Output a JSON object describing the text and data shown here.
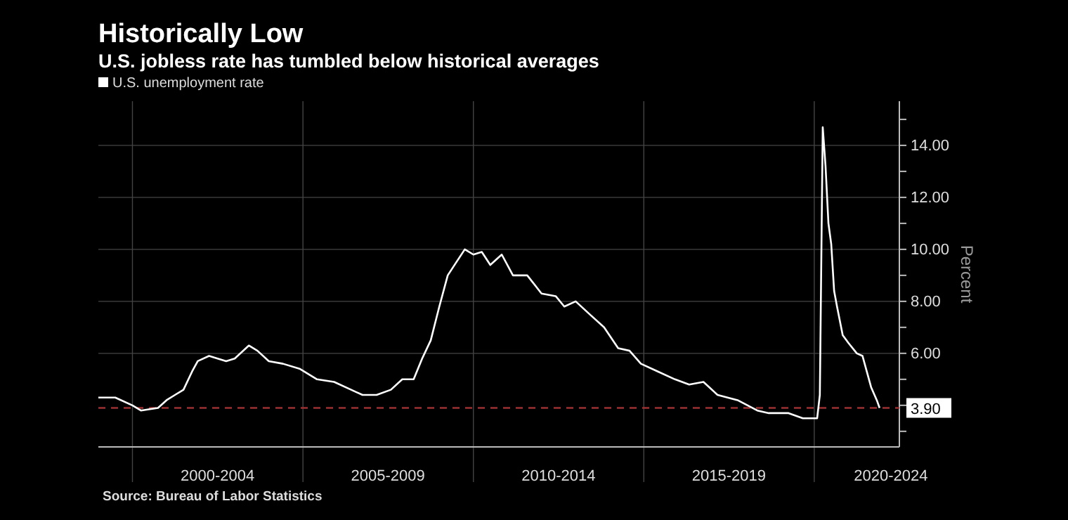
{
  "chart_data": {
    "type": "line",
    "title": "Historically Low",
    "subtitle": "U.S. jobless rate has tumbled below historical averages",
    "ylabel": "Percent",
    "annotations": [
      "Source: Bureau of Labor Statistics"
    ],
    "x": [
      "1999-01",
      "1999-07",
      "2000-01",
      "2000-04",
      "2000-10",
      "2001-01",
      "2001-04",
      "2001-07",
      "2001-10",
      "2001-12",
      "2002-04",
      "2002-07",
      "2002-10",
      "2003-01",
      "2003-06",
      "2003-09",
      "2004-01",
      "2004-06",
      "2004-12",
      "2005-06",
      "2005-12",
      "2006-06",
      "2006-10",
      "2007-03",
      "2007-08",
      "2007-12",
      "2008-04",
      "2008-07",
      "2008-10",
      "2009-01",
      "2009-04",
      "2009-07",
      "2009-10",
      "2010-01",
      "2010-04",
      "2010-07",
      "2010-11",
      "2011-03",
      "2011-08",
      "2012-01",
      "2012-06",
      "2012-09",
      "2013-01",
      "2013-06",
      "2013-11",
      "2014-04",
      "2014-08",
      "2014-12",
      "2015-06",
      "2015-12",
      "2016-05",
      "2016-10",
      "2017-03",
      "2017-10",
      "2018-05",
      "2018-09",
      "2019-04",
      "2019-09",
      "2020-02",
      "2020-03",
      "2020-04",
      "2020-05",
      "2020-06",
      "2020-07",
      "2020-08",
      "2020-09",
      "2020-11",
      "2021-01",
      "2021-04",
      "2021-06",
      "2021-09",
      "2021-11",
      "2021-12"
    ],
    "series": [
      {
        "name": "U.S. unemployment rate",
        "color": "#ffffff",
        "values": [
          4.3,
          4.3,
          4.0,
          3.8,
          3.9,
          4.2,
          4.4,
          4.6,
          5.3,
          5.7,
          5.9,
          5.8,
          5.7,
          5.8,
          6.3,
          6.1,
          5.7,
          5.6,
          5.4,
          5.0,
          4.9,
          4.6,
          4.4,
          4.4,
          4.6,
          5.0,
          5.0,
          5.8,
          6.5,
          7.8,
          9.0,
          9.5,
          10.0,
          9.8,
          9.9,
          9.4,
          9.8,
          9.0,
          9.0,
          8.3,
          8.2,
          7.8,
          8.0,
          7.5,
          7.0,
          6.2,
          6.1,
          5.6,
          5.3,
          5.0,
          4.8,
          4.9,
          4.4,
          4.2,
          3.8,
          3.7,
          3.7,
          3.5,
          3.5,
          4.4,
          14.7,
          13.2,
          11.0,
          10.2,
          8.4,
          7.8,
          6.7,
          6.4,
          6.0,
          5.9,
          4.7,
          4.2,
          3.9
        ]
      }
    ],
    "xlim": [
      "1999-01",
      "2022-07"
    ],
    "xticks": [
      {
        "value": "2000-01",
        "label": null
      },
      {
        "value": "2002-07",
        "label": "2000-2004"
      },
      {
        "value": "2005-01",
        "label": null
      },
      {
        "value": "2007-07",
        "label": "2005-2009"
      },
      {
        "value": "2010-01",
        "label": null
      },
      {
        "value": "2012-07",
        "label": "2010-2014"
      },
      {
        "value": "2015-01",
        "label": null
      },
      {
        "value": "2017-07",
        "label": "2015-2019"
      },
      {
        "value": "2020-01",
        "label": null
      },
      {
        "value": "2022-04",
        "label": "2020-2024"
      }
    ],
    "ylim": [
      2.4,
      15.7
    ],
    "yticks": [
      {
        "value": 3,
        "label": null
      },
      {
        "value": 4,
        "label": null
      },
      {
        "value": 5,
        "label": null
      },
      {
        "value": 6,
        "label": "6.00"
      },
      {
        "value": 7,
        "label": null
      },
      {
        "value": 8,
        "label": "8.00"
      },
      {
        "value": 9,
        "label": null
      },
      {
        "value": 10,
        "label": "10.00"
      },
      {
        "value": 11,
        "label": null
      },
      {
        "value": 12,
        "label": "12.00"
      },
      {
        "value": 13,
        "label": null
      },
      {
        "value": 14,
        "label": "14.00"
      },
      {
        "value": 15,
        "label": null
      }
    ],
    "ref_lines": [
      {
        "axis": "y",
        "value": 3.9,
        "label": "3.90",
        "color": "#9a3030",
        "line_style": "dashed"
      }
    ],
    "grid": true,
    "legend": "top left",
    "line_style": "solid",
    "marker": "none"
  }
}
